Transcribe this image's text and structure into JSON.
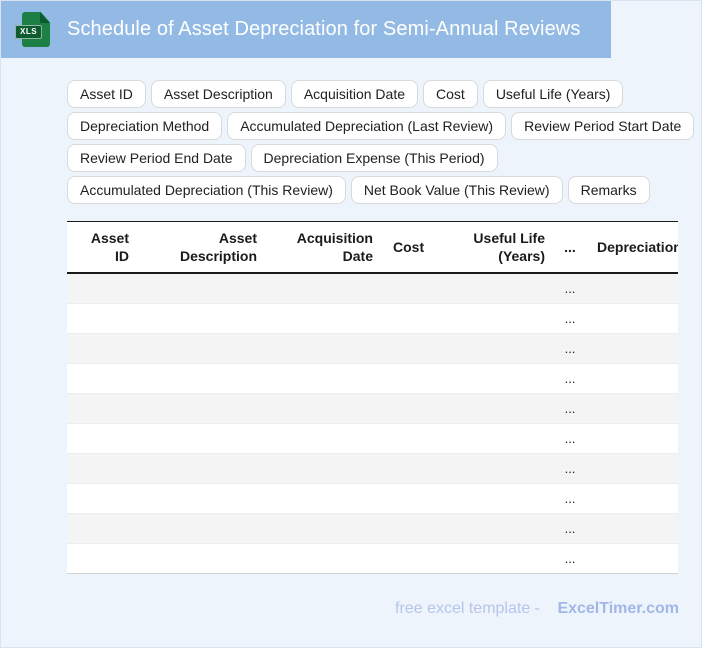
{
  "colors": {
    "topbar-blue": "#92bae4",
    "icon-green": "#1c8045",
    "icon-green-dark": "#0d5c2f",
    "page-bg": "#eef4fb",
    "footer-text": "#b6c4ec",
    "footer-brand": "#a2b6e8"
  },
  "header": {
    "title": "Schedule of Asset Depreciation for Semi-Annual Reviews",
    "file_badge": "XLS"
  },
  "chips": [
    "Asset ID",
    "Asset Description",
    "Acquisition Date",
    "Cost",
    "Useful Life (Years)",
    "Depreciation Method",
    "Accumulated Depreciation (Last Review)",
    "Review Period Start Date",
    "Review Period End Date",
    "Depreciation Expense (This Period)",
    "Accumulated Depreciation (This Review)",
    "Net Book Value (This Review)",
    "Remarks"
  ],
  "table": {
    "columns": [
      "Asset ID",
      "Asset Description",
      "Acquisition Date",
      "Cost",
      "Useful Life (Years)",
      "...",
      "Depreciation Method"
    ],
    "ellipsis_header": "...",
    "row_placeholder": "...",
    "row_count": 10
  },
  "footer": {
    "text": "free excel template -",
    "brand": "ExcelTimer.com"
  }
}
